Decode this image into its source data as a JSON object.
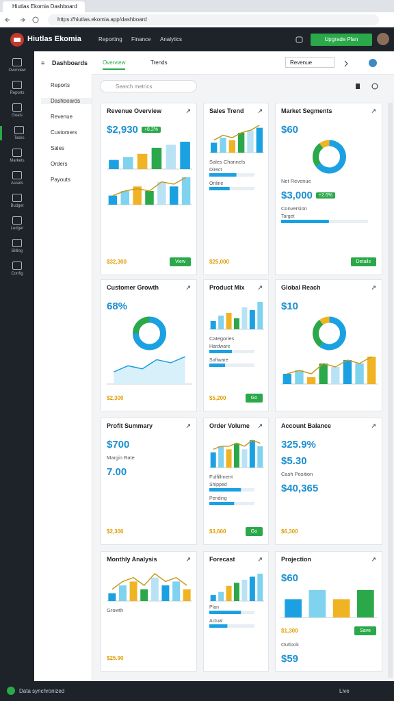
{
  "browser": {
    "tab_title": "Hiutlas Ekomia Dashboard",
    "url": "https://hiutlas.ekomia.app/dashboard"
  },
  "header": {
    "title": "Hiutlas Ekomia",
    "nav": [
      "Reporting",
      "Finance",
      "Analytics"
    ],
    "button": "Upgrade Plan"
  },
  "sidebar": [
    "Overview",
    "Reports",
    "Goals",
    "Tasks",
    "Markets",
    "Assets",
    "Budget",
    "Ledger",
    "Billing",
    "Config"
  ],
  "nav": [
    "Reports",
    "Dashboards",
    "Revenue",
    "Customers",
    "Sales",
    "Orders",
    "Payouts"
  ],
  "toolbar": {
    "title": "Dashboards",
    "tabs": [
      "Overview",
      "Trends"
    ],
    "dropdown": "Revenue",
    "search": "Search metrics"
  },
  "palette": [
    "#1ba1e2",
    "#7fd3ef",
    "#f0b323",
    "#2aa84a",
    "#b9e3f4"
  ],
  "progress_max": 100,
  "cards": [
    {
      "title": "Revenue Overview",
      "blocks": [
        {
          "kind": "kpi",
          "text": "$2,930",
          "badge": "+8.2%"
        },
        {
          "kind": "bar",
          "values": [
            3,
            4,
            5,
            7,
            8,
            9
          ]
        },
        {
          "kind": "bar",
          "values": [
            2,
            3,
            4,
            3,
            5,
            4,
            6
          ],
          "line": [
            2,
            3,
            3.5,
            3,
            5,
            4.5,
            6
          ]
        },
        {
          "kind": "footer",
          "text": "$32,300",
          "button": "View"
        }
      ]
    },
    {
      "title": "Sales Trend",
      "blocks": [
        {
          "kind": "bar",
          "values": [
            4,
            6,
            5,
            8,
            9,
            10
          ],
          "line": [
            5,
            7,
            6,
            8,
            9,
            11
          ]
        },
        {
          "kind": "heading",
          "text": "Sales Channels"
        },
        {
          "kind": "progress",
          "label": "Direct",
          "value": 60
        },
        {
          "kind": "progress",
          "label": "Online",
          "value": 45
        },
        {
          "kind": "footer",
          "text": "$25,000"
        }
      ]
    },
    {
      "title": "Market Segments",
      "blocks": [
        {
          "kind": "kpi",
          "text": "$60"
        },
        {
          "kind": "donut",
          "values": [
            65,
            25,
            10
          ]
        },
        {
          "kind": "heading",
          "text": "Net Revenue"
        },
        {
          "kind": "kpi",
          "text": "$3,000",
          "badge": "+2.6%"
        },
        {
          "kind": "heading",
          "text": "Conversion"
        },
        {
          "kind": "progress",
          "label": "Target",
          "value": 55
        },
        {
          "kind": "footer",
          "button": "Details"
        }
      ]
    },
    {
      "title": "Customer Growth",
      "blocks": [
        {
          "kind": "kpi",
          "text": "68%"
        },
        {
          "kind": "donut",
          "values": [
            75,
            25
          ]
        },
        {
          "kind": "line",
          "values": [
            2,
            3,
            2.5,
            4,
            3.5,
            4.5
          ]
        },
        {
          "kind": "footer",
          "text": "$2,300"
        }
      ]
    },
    {
      "title": "Product Mix",
      "blocks": [
        {
          "kind": "bar",
          "values": [
            3,
            5,
            6,
            4,
            8,
            7,
            10
          ]
        },
        {
          "kind": "heading",
          "text": "Categories"
        },
        {
          "kind": "progress",
          "label": "Hardware",
          "value": 50
        },
        {
          "kind": "progress",
          "label": "Software",
          "value": 35
        },
        {
          "kind": "footer",
          "text": "$5,200",
          "button": "Go"
        }
      ]
    },
    {
      "title": "Global Reach",
      "blocks": [
        {
          "kind": "kpi",
          "text": "$10"
        },
        {
          "kind": "donut",
          "values": [
            60,
            30,
            10
          ]
        },
        {
          "kind": "bar",
          "values": [
            3,
            4,
            2,
            6,
            5,
            7,
            6,
            8
          ],
          "line": [
            3,
            4,
            3,
            6,
            5,
            7,
            6,
            8
          ]
        }
      ]
    },
    {
      "title": "Profit Summary",
      "blocks": [
        {
          "kind": "kpi",
          "text": "$700"
        },
        {
          "kind": "heading",
          "text": "Margin Rate"
        },
        {
          "kind": "kpi",
          "text": "7.00"
        },
        {
          "kind": "footer",
          "text": "$2,300"
        }
      ]
    },
    {
      "title": "Order Volume",
      "blocks": [
        {
          "kind": "bar",
          "values": [
            5,
            7,
            6,
            8,
            6,
            9,
            7
          ],
          "line": [
            6,
            7,
            7,
            8,
            7,
            9,
            8
          ]
        },
        {
          "kind": "heading",
          "text": "Fulfillment"
        },
        {
          "kind": "progress",
          "label": "Shipped",
          "value": 70
        },
        {
          "kind": "progress",
          "label": "Pending",
          "value": 55
        },
        {
          "kind": "footer",
          "text": "$3,600",
          "button": "Go"
        }
      ]
    },
    {
      "title": "Account Balance",
      "blocks": [
        {
          "kind": "kpi",
          "text": "325.9%"
        },
        {
          "kind": "kpi",
          "text": "$5.30"
        },
        {
          "kind": "heading",
          "text": "Cash Position"
        },
        {
          "kind": "kpi",
          "text": "$40,365"
        },
        {
          "kind": "footer",
          "text": "$6,300"
        }
      ]
    },
    {
      "title": "Monthly Analysis",
      "blocks": [
        {
          "kind": "bar",
          "values": [
            2,
            4,
            5,
            3,
            6,
            4,
            5,
            3
          ],
          "line": [
            3,
            5,
            6,
            4,
            7,
            5,
            6,
            4
          ]
        },
        {
          "kind": "heading",
          "text": "Growth"
        },
        {
          "kind": "footer",
          "text": "$25.90"
        }
      ]
    },
    {
      "title": "Forecast",
      "blocks": [
        {
          "kind": "bar",
          "values": [
            2,
            3,
            5,
            6,
            7,
            8,
            9
          ]
        },
        {
          "kind": "progress",
          "label": "Plan",
          "value": 70
        },
        {
          "kind": "progress",
          "label": "Actual",
          "value": 40
        }
      ]
    },
    {
      "title": "Projection",
      "blocks": [
        {
          "kind": "kpi",
          "text": "$60"
        },
        {
          "kind": "bar",
          "values": [
            2,
            3,
            2,
            3
          ]
        },
        {
          "kind": "footer",
          "text": "$1,300",
          "button": "Save"
        },
        {
          "kind": "heading",
          "text": "Outlook"
        },
        {
          "kind": "kpi",
          "text": "$59"
        }
      ]
    }
  ],
  "status": {
    "left": "Data synchronized",
    "right": "Live"
  }
}
